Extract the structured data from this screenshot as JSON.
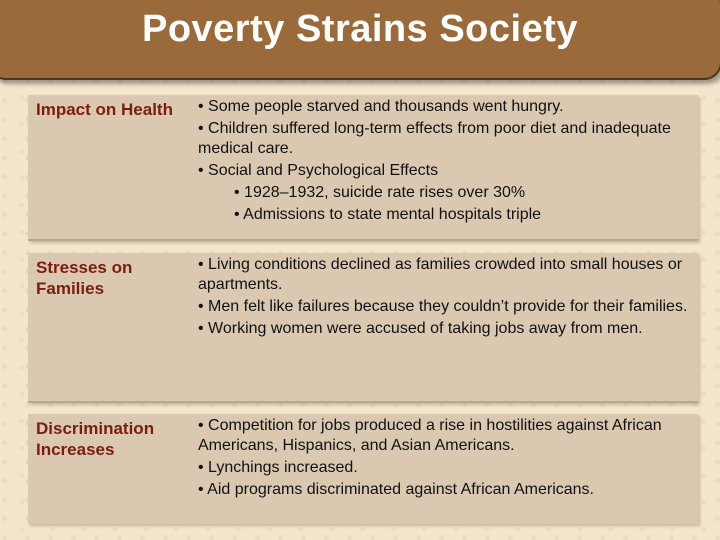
{
  "title": "Poverty Strains Society",
  "rows": [
    {
      "heading": "Impact on Health",
      "bullets": [
        "• Some people starved and thousands went hungry.",
        "• Children suffered long-term effects from poor diet and inadequate medical care.",
        "• Social and Psychological Effects"
      ],
      "sub_bullets": [
        "• 1928–1932, suicide rate rises over 30%",
        "• Admissions to state mental hospitals triple"
      ]
    },
    {
      "heading": "Stresses on Families",
      "bullets": [
        "• Living conditions declined as families crowded into small houses or apartments.",
        "• Men felt like failures because they couldn’t provide for their families.",
        "• Working women were accused of taking jobs away from men."
      ]
    },
    {
      "heading": "Discrimination Increases",
      "bullets": [
        "• Competition for jobs produced a rise in hostilities against African Americans, Hispanics, and Asian Americans.",
        "• Lynchings increased.",
        "• Aid programs discriminated against African Americans."
      ]
    }
  ]
}
